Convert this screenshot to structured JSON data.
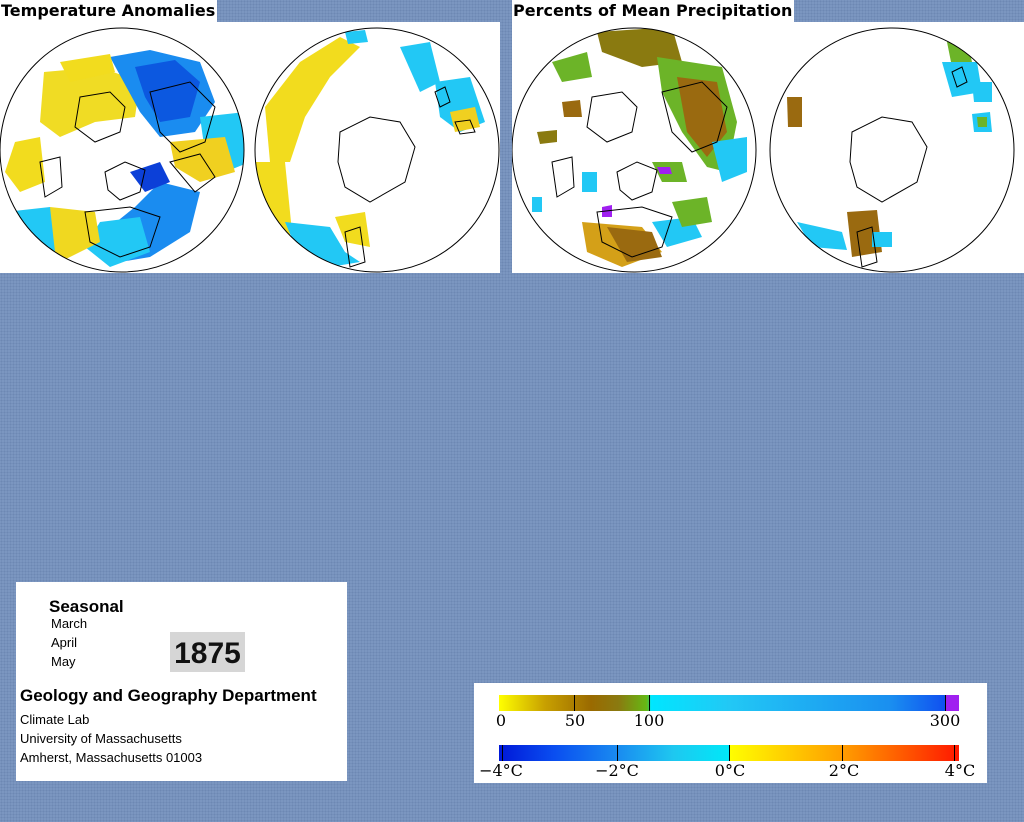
{
  "temperature": {
    "title": "Temperature Anomalies"
  },
  "precipitation": {
    "title": "Percents of Mean Precipitation"
  },
  "info": {
    "season": "Seasonal",
    "months": [
      "March",
      "April",
      "May"
    ],
    "year": "1875",
    "department": "Geology and Geography Department",
    "org_lines": [
      "Climate Lab",
      "University of Massachusetts",
      "Amherst, Massachusetts 01003"
    ]
  },
  "legend": {
    "precip_labels": [
      "0",
      "50",
      "100",
      "300"
    ],
    "temp_labels": [
      "−4°C",
      "−2°C",
      "0°C",
      "2°C",
      "4°C"
    ]
  },
  "colors": {
    "background": "#7b96c0",
    "cold": "#1a8cf0",
    "cyan": "#22d8f8",
    "warm_yellow": "#f2dc1e",
    "dry_brown": "#9a6a10",
    "wet_green": "#6cb428",
    "extreme_purple": "#a020f0"
  }
}
